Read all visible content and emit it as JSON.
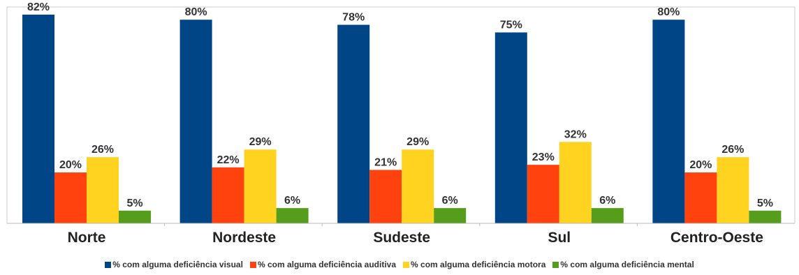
{
  "chart_data": {
    "type": "bar",
    "categories": [
      "Norte",
      "Nordeste",
      "Sudeste",
      "Sul",
      "Centro-Oeste"
    ],
    "series": [
      {
        "name": "% com alguma deficiência visual",
        "color": "#004586",
        "values": [
          82,
          80,
          78,
          75,
          80
        ],
        "labels": [
          "82%",
          "80%",
          "78%",
          "75%",
          "80%"
        ]
      },
      {
        "name": "% com alguma deficiência auditiva",
        "color": "#ff420e",
        "values": [
          20,
          22,
          21,
          23,
          20
        ],
        "labels": [
          "20%",
          "22%",
          "21%",
          "23%",
          "20%"
        ]
      },
      {
        "name": "% com alguma deficiência motora",
        "color": "#ffd320",
        "values": [
          26,
          29,
          29,
          32,
          26
        ],
        "labels": [
          "26%",
          "29%",
          "29%",
          "32%",
          "26%"
        ]
      },
      {
        "name": "% com alguma deficiência mental",
        "color": "#579d1c",
        "values": [
          5,
          6,
          6,
          6,
          5
        ],
        "labels": [
          "5%",
          "6%",
          "6%",
          "6%",
          "5%"
        ]
      }
    ],
    "ylim": [
      0,
      85
    ],
    "legend_position": "bottom",
    "grid": false
  }
}
